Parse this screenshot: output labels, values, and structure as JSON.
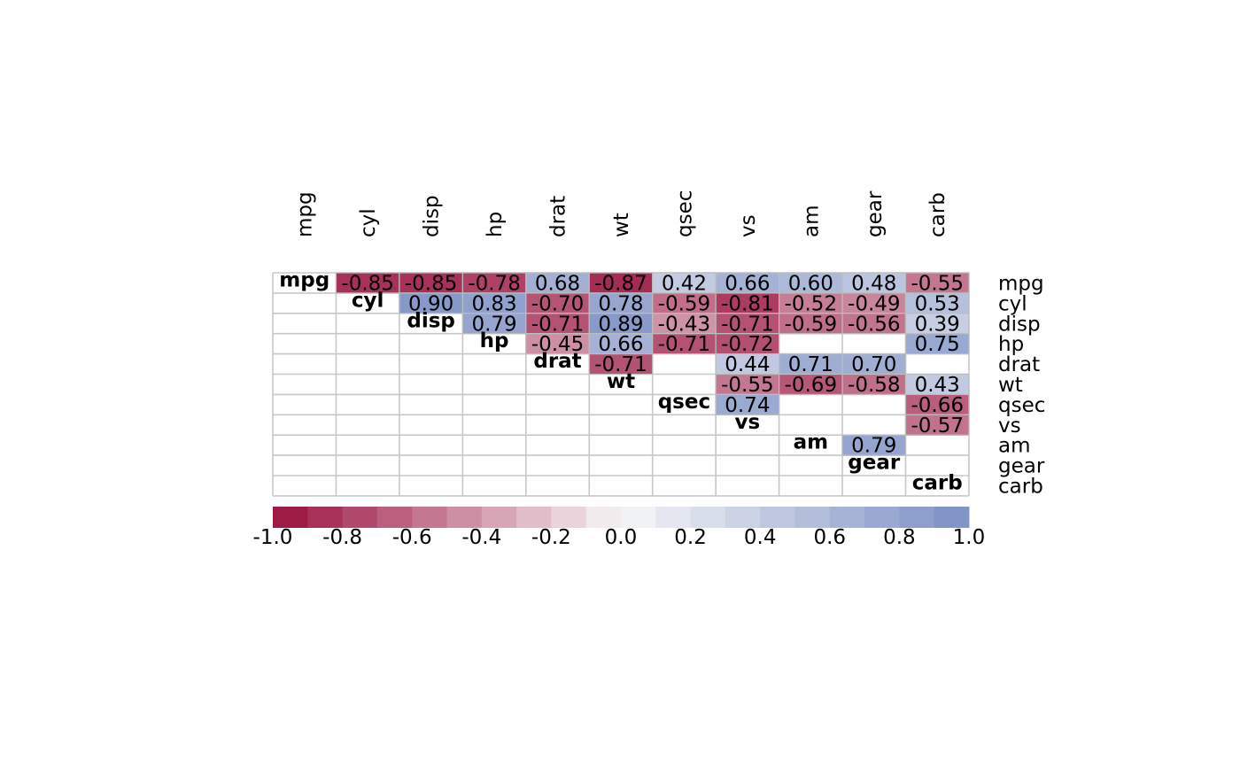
{
  "chart_data": {
    "type": "heatmap",
    "variables": [
      "mpg",
      "cyl",
      "disp",
      "hp",
      "drat",
      "wt",
      "qsec",
      "vs",
      "am",
      "gear",
      "carb"
    ],
    "upper_triangle_only": true,
    "cells": [
      {
        "row": "mpg",
        "col": "cyl",
        "value": -0.85,
        "label": "-0.85"
      },
      {
        "row": "mpg",
        "col": "disp",
        "value": -0.85,
        "label": "-0.85"
      },
      {
        "row": "mpg",
        "col": "hp",
        "value": -0.78,
        "label": "-0.78"
      },
      {
        "row": "mpg",
        "col": "drat",
        "value": 0.68,
        "label": "0.68"
      },
      {
        "row": "mpg",
        "col": "wt",
        "value": -0.87,
        "label": "-0.87"
      },
      {
        "row": "mpg",
        "col": "qsec",
        "value": 0.42,
        "label": "0.42"
      },
      {
        "row": "mpg",
        "col": "vs",
        "value": 0.66,
        "label": "0.66"
      },
      {
        "row": "mpg",
        "col": "am",
        "value": 0.6,
        "label": "0.60"
      },
      {
        "row": "mpg",
        "col": "gear",
        "value": 0.48,
        "label": "0.48"
      },
      {
        "row": "mpg",
        "col": "carb",
        "value": -0.55,
        "label": "-0.55"
      },
      {
        "row": "cyl",
        "col": "disp",
        "value": 0.9,
        "label": "0.90"
      },
      {
        "row": "cyl",
        "col": "hp",
        "value": 0.83,
        "label": "0.83"
      },
      {
        "row": "cyl",
        "col": "drat",
        "value": -0.7,
        "label": "-0.70"
      },
      {
        "row": "cyl",
        "col": "wt",
        "value": 0.78,
        "label": "0.78"
      },
      {
        "row": "cyl",
        "col": "qsec",
        "value": -0.59,
        "label": "-0.59"
      },
      {
        "row": "cyl",
        "col": "vs",
        "value": -0.81,
        "label": "-0.81"
      },
      {
        "row": "cyl",
        "col": "am",
        "value": -0.52,
        "label": "-0.52"
      },
      {
        "row": "cyl",
        "col": "gear",
        "value": -0.49,
        "label": "-0.49"
      },
      {
        "row": "cyl",
        "col": "carb",
        "value": 0.53,
        "label": "0.53"
      },
      {
        "row": "disp",
        "col": "hp",
        "value": 0.79,
        "label": "0.79"
      },
      {
        "row": "disp",
        "col": "drat",
        "value": -0.71,
        "label": "-0.71"
      },
      {
        "row": "disp",
        "col": "wt",
        "value": 0.89,
        "label": "0.89"
      },
      {
        "row": "disp",
        "col": "qsec",
        "value": -0.43,
        "label": "-0.43"
      },
      {
        "row": "disp",
        "col": "vs",
        "value": -0.71,
        "label": "-0.71"
      },
      {
        "row": "disp",
        "col": "am",
        "value": -0.59,
        "label": "-0.59"
      },
      {
        "row": "disp",
        "col": "gear",
        "value": -0.56,
        "label": "-0.56"
      },
      {
        "row": "disp",
        "col": "carb",
        "value": 0.39,
        "label": "0.39"
      },
      {
        "row": "hp",
        "col": "drat",
        "value": -0.45,
        "label": "-0.45"
      },
      {
        "row": "hp",
        "col": "wt",
        "value": 0.66,
        "label": "0.66"
      },
      {
        "row": "hp",
        "col": "qsec",
        "value": -0.71,
        "label": "-0.71"
      },
      {
        "row": "hp",
        "col": "vs",
        "value": -0.72,
        "label": "-0.72"
      },
      {
        "row": "hp",
        "col": "carb",
        "value": 0.75,
        "label": "0.75"
      },
      {
        "row": "drat",
        "col": "wt",
        "value": -0.71,
        "label": "-0.71"
      },
      {
        "row": "drat",
        "col": "vs",
        "value": 0.44,
        "label": "0.44"
      },
      {
        "row": "drat",
        "col": "am",
        "value": 0.71,
        "label": "0.71"
      },
      {
        "row": "drat",
        "col": "gear",
        "value": 0.7,
        "label": "0.70"
      },
      {
        "row": "wt",
        "col": "vs",
        "value": -0.55,
        "label": "-0.55"
      },
      {
        "row": "wt",
        "col": "am",
        "value": -0.69,
        "label": "-0.69"
      },
      {
        "row": "wt",
        "col": "gear",
        "value": -0.58,
        "label": "-0.58"
      },
      {
        "row": "wt",
        "col": "carb",
        "value": 0.43,
        "label": "0.43"
      },
      {
        "row": "qsec",
        "col": "vs",
        "value": 0.74,
        "label": "0.74"
      },
      {
        "row": "qsec",
        "col": "carb",
        "value": -0.66,
        "label": "-0.66"
      },
      {
        "row": "vs",
        "col": "carb",
        "value": -0.57,
        "label": "-0.57"
      },
      {
        "row": "am",
        "col": "gear",
        "value": 0.79,
        "label": "0.79"
      }
    ],
    "color_scale": {
      "range": [
        -1.0,
        1.0
      ],
      "low_color": "#990f3d",
      "mid_color": "#f7f7f7",
      "high_color": "#7b8fc4",
      "tick_labels": [
        "-1.0",
        "-0.8",
        "-0.6",
        "-0.4",
        "-0.2",
        "0.0",
        "0.2",
        "0.4",
        "0.6",
        "0.8",
        "1.0"
      ]
    },
    "colors": {
      "grid": "#c8c8c8",
      "cell_border": "#bdbdbd"
    }
  }
}
